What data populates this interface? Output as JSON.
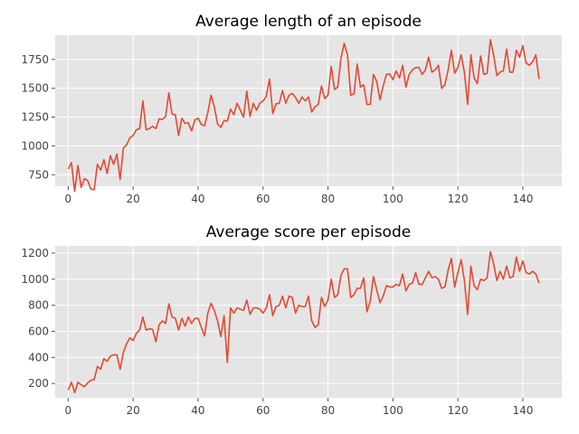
{
  "chart_data": [
    {
      "type": "line",
      "title": "Average length of an episode",
      "xlabel": "",
      "ylabel": "",
      "xlim": [
        -4,
        152
      ],
      "ylim": [
        650,
        1960
      ],
      "xticks": [
        0,
        20,
        40,
        60,
        80,
        100,
        120,
        140
      ],
      "yticks": [
        750,
        1000,
        1250,
        1500,
        1750
      ],
      "xtick_labels": [
        "0",
        "20",
        "40",
        "60",
        "80",
        "100",
        "120",
        "140"
      ],
      "ytick_labels": [
        "750",
        "1000",
        "1250",
        "1500",
        "1750"
      ],
      "grid": true,
      "color": "#e24a33",
      "series": [
        {
          "values": [
            800,
            855,
            605,
            830,
            640,
            715,
            700,
            625,
            620,
            840,
            790,
            880,
            760,
            915,
            840,
            930,
            710,
            980,
            1010,
            1070,
            1090,
            1140,
            1150,
            1390,
            1140,
            1150,
            1170,
            1150,
            1235,
            1230,
            1255,
            1460,
            1275,
            1270,
            1090,
            1240,
            1195,
            1200,
            1130,
            1225,
            1240,
            1185,
            1175,
            1290,
            1440,
            1340,
            1190,
            1160,
            1220,
            1215,
            1320,
            1270,
            1370,
            1310,
            1250,
            1475,
            1255,
            1370,
            1310,
            1370,
            1390,
            1430,
            1580,
            1280,
            1365,
            1370,
            1480,
            1370,
            1440,
            1455,
            1420,
            1370,
            1425,
            1390,
            1425,
            1295,
            1340,
            1360,
            1520,
            1410,
            1440,
            1690,
            1490,
            1510,
            1760,
            1890,
            1790,
            1440,
            1450,
            1710,
            1510,
            1530,
            1360,
            1360,
            1620,
            1560,
            1400,
            1520,
            1620,
            1625,
            1575,
            1650,
            1590,
            1700,
            1510,
            1620,
            1660,
            1680,
            1680,
            1620,
            1660,
            1770,
            1640,
            1660,
            1700,
            1500,
            1530,
            1660,
            1830,
            1630,
            1680,
            1790,
            1640,
            1360,
            1790,
            1590,
            1540,
            1780,
            1620,
            1630,
            1920,
            1790,
            1610,
            1640,
            1650,
            1840,
            1640,
            1640,
            1830,
            1770,
            1870,
            1720,
            1700,
            1730,
            1790,
            1580
          ]
        }
      ]
    },
    {
      "type": "line",
      "title": "Average score per episode",
      "xlabel": "",
      "ylabel": "",
      "xlim": [
        -4,
        152
      ],
      "ylim": [
        90,
        1255
      ],
      "xticks": [
        0,
        20,
        40,
        60,
        80,
        100,
        120,
        140
      ],
      "yticks": [
        200,
        400,
        600,
        800,
        1000,
        1200
      ],
      "xtick_labels": [
        "0",
        "20",
        "40",
        "60",
        "80",
        "100",
        "120",
        "140"
      ],
      "ytick_labels": [
        "200",
        "400",
        "600",
        "800",
        "1000",
        "1200"
      ],
      "grid": true,
      "color": "#e24a33",
      "series": [
        {
          "values": [
            150,
            210,
            130,
            210,
            190,
            175,
            205,
            225,
            230,
            330,
            310,
            390,
            370,
            410,
            420,
            420,
            310,
            440,
            505,
            550,
            530,
            585,
            610,
            710,
            610,
            620,
            615,
            520,
            650,
            680,
            660,
            810,
            710,
            700,
            610,
            700,
            640,
            710,
            660,
            700,
            700,
            630,
            565,
            740,
            815,
            760,
            680,
            560,
            720,
            360,
            780,
            740,
            780,
            770,
            760,
            840,
            730,
            780,
            780,
            770,
            740,
            780,
            880,
            720,
            790,
            800,
            870,
            780,
            870,
            860,
            740,
            800,
            790,
            790,
            870,
            680,
            630,
            650,
            860,
            790,
            840,
            1000,
            860,
            880,
            1030,
            1080,
            1080,
            860,
            880,
            930,
            930,
            1010,
            750,
            830,
            1020,
            920,
            820,
            870,
            950,
            940,
            940,
            960,
            950,
            1040,
            910,
            960,
            970,
            1050,
            960,
            960,
            1010,
            1060,
            1010,
            1020,
            1000,
            930,
            940,
            1070,
            1160,
            940,
            1050,
            1150,
            990,
            730,
            1100,
            950,
            920,
            1000,
            990,
            1010,
            1210,
            1120,
            990,
            1060,
            1000,
            1100,
            1010,
            1020,
            1170,
            1060,
            1140,
            1050,
            1040,
            1060,
            1040,
            970
          ]
        }
      ]
    }
  ]
}
